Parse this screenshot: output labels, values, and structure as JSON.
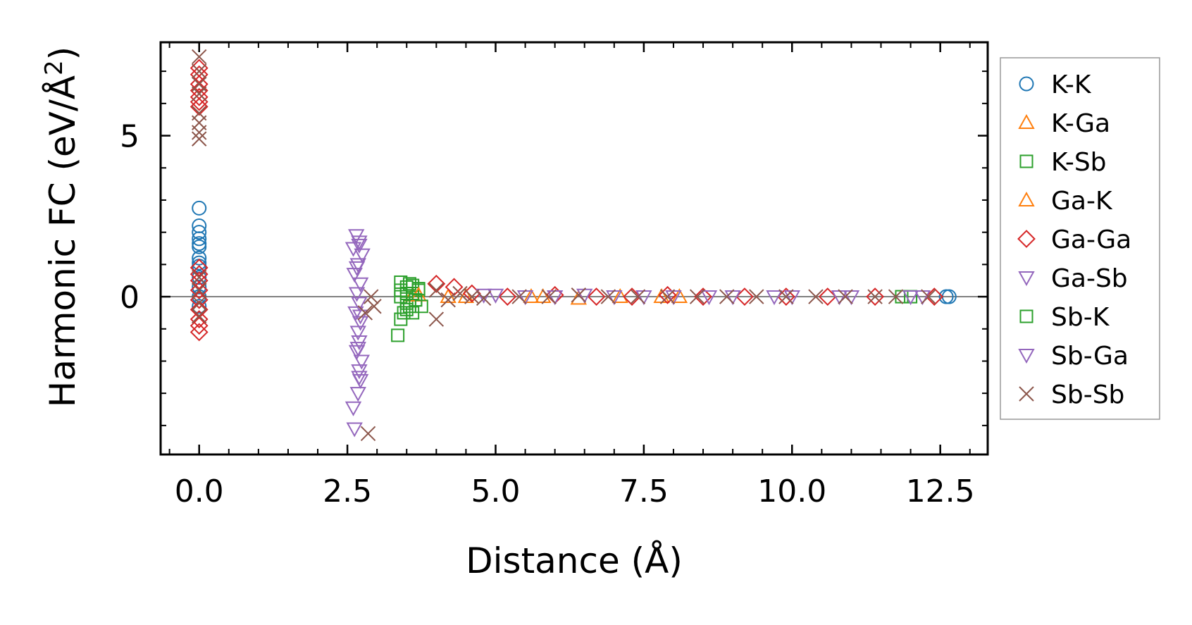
{
  "chart_data": {
    "type": "scatter",
    "title": "",
    "xlabel": "Distance (Å)",
    "ylabel_main": "Harmonic FC (eV/Å",
    "ylabel_sup": "2",
    "ylabel_tail": ")",
    "xlim": [
      -0.65,
      13.3
    ],
    "ylim": [
      -4.9,
      7.9
    ],
    "xticks": [
      0.0,
      2.5,
      5.0,
      7.5,
      10.0,
      12.5
    ],
    "xtick_labels": [
      "0.0",
      "2.5",
      "5.0",
      "7.5",
      "10.0",
      "12.5"
    ],
    "xminor_step": 0.5,
    "yticks": [
      0,
      5
    ],
    "ytick_labels": [
      "0",
      "5"
    ],
    "yminor_step": 1,
    "zero_line": true,
    "grid": false,
    "legend_position": "right outside",
    "series": [
      {
        "name": "K-K",
        "marker": "circle",
        "color": "#1f77b4",
        "points": [
          [
            0.0,
            2.75
          ],
          [
            0.0,
            2.2
          ],
          [
            0.0,
            2.0
          ],
          [
            0.0,
            1.8
          ],
          [
            0.0,
            1.65
          ],
          [
            0.0,
            1.55
          ],
          [
            0.0,
            1.2
          ],
          [
            0.0,
            1.05
          ],
          [
            0.0,
            0.95
          ],
          [
            0.0,
            0.6
          ],
          [
            0.0,
            0.3
          ],
          [
            0.0,
            0.0
          ],
          [
            0.0,
            -0.3
          ],
          [
            12.65,
            0.0
          ],
          [
            12.6,
            0.0
          ]
        ]
      },
      {
        "name": "K-Ga",
        "marker": "triangle-up",
        "color": "#ff7f0e",
        "points": [
          [
            3.6,
            0.05
          ],
          [
            4.2,
            0.0
          ],
          [
            5.6,
            0.0
          ],
          [
            6.4,
            -0.05
          ],
          [
            7.1,
            0.0
          ],
          [
            8.1,
            0.0
          ]
        ]
      },
      {
        "name": "K-Sb",
        "marker": "square",
        "color": "#2ca02c",
        "points": [
          [
            3.35,
            -1.2
          ],
          [
            3.4,
            -0.7
          ],
          [
            3.45,
            -0.5
          ],
          [
            3.4,
            0.45
          ],
          [
            3.5,
            0.3
          ],
          [
            3.55,
            -0.3
          ],
          [
            3.6,
            0.1
          ],
          [
            3.65,
            -0.1
          ],
          [
            3.7,
            0.2
          ],
          [
            3.4,
            0.0
          ],
          [
            3.5,
            -0.2
          ],
          [
            3.6,
            0.35
          ],
          [
            11.85,
            0.0
          ],
          [
            12.0,
            0.0
          ]
        ]
      },
      {
        "name": "Ga-K",
        "marker": "triangle-up",
        "color": "#ff7f0e",
        "points": [
          [
            3.7,
            0.05
          ],
          [
            4.5,
            0.0
          ],
          [
            5.8,
            0.0
          ],
          [
            7.8,
            0.0
          ]
        ]
      },
      {
        "name": "Ga-Ga",
        "marker": "diamond",
        "color": "#d62728",
        "points": [
          [
            0.0,
            7.1
          ],
          [
            0.0,
            6.9
          ],
          [
            0.0,
            6.6
          ],
          [
            0.0,
            6.4
          ],
          [
            0.0,
            6.2
          ],
          [
            0.0,
            6.05
          ],
          [
            0.0,
            5.9
          ],
          [
            0.0,
            0.9
          ],
          [
            0.0,
            0.7
          ],
          [
            0.0,
            0.5
          ],
          [
            0.0,
            0.2
          ],
          [
            0.0,
            -0.1
          ],
          [
            0.0,
            -0.4
          ],
          [
            0.0,
            -0.7
          ],
          [
            0.0,
            -0.9
          ],
          [
            0.0,
            -1.1
          ],
          [
            4.0,
            0.4
          ],
          [
            4.3,
            0.3
          ],
          [
            4.6,
            0.1
          ],
          [
            5.2,
            0.0
          ],
          [
            6.0,
            0.05
          ],
          [
            6.7,
            0.0
          ],
          [
            7.3,
            0.0
          ],
          [
            7.9,
            0.05
          ],
          [
            8.5,
            0.0
          ],
          [
            9.2,
            0.0
          ],
          [
            9.9,
            0.0
          ],
          [
            10.6,
            0.0
          ],
          [
            11.4,
            0.0
          ],
          [
            12.4,
            0.0
          ]
        ]
      },
      {
        "name": "Ga-Sb",
        "marker": "triangle-down",
        "color": "#9467bd",
        "points": [
          [
            2.65,
            1.9
          ],
          [
            2.7,
            1.7
          ],
          [
            2.6,
            1.5
          ],
          [
            2.75,
            1.3
          ],
          [
            2.68,
            1.0
          ],
          [
            2.62,
            0.7
          ],
          [
            2.72,
            0.4
          ],
          [
            2.66,
            0.1
          ],
          [
            2.7,
            -0.2
          ],
          [
            2.64,
            -0.5
          ],
          [
            2.72,
            -0.8
          ],
          [
            2.68,
            -1.1
          ],
          [
            2.7,
            -1.4
          ],
          [
            2.66,
            -1.7
          ],
          [
            2.74,
            -2.0
          ],
          [
            2.7,
            -2.3
          ],
          [
            2.72,
            -2.6
          ],
          [
            2.68,
            -3.0
          ],
          [
            2.6,
            -3.45
          ],
          [
            2.62,
            -4.1
          ],
          [
            5.0,
            0.05
          ],
          [
            6.0,
            0.0
          ],
          [
            7.0,
            0.0
          ],
          [
            8.0,
            0.0
          ],
          [
            9.0,
            0.0
          ],
          [
            10.0,
            0.0
          ],
          [
            11.0,
            0.0
          ],
          [
            12.2,
            0.0
          ]
        ]
      },
      {
        "name": "Sb-K",
        "marker": "square",
        "color": "#2ca02c",
        "points": [
          [
            3.4,
            0.2
          ],
          [
            3.5,
            -0.4
          ],
          [
            3.55,
            0.4
          ],
          [
            3.65,
            -0.1
          ],
          [
            3.7,
            0.25
          ],
          [
            3.75,
            -0.3
          ],
          [
            3.5,
            0.1
          ],
          [
            3.6,
            -0.5
          ]
        ]
      },
      {
        "name": "Sb-Ga",
        "marker": "triangle-down",
        "color": "#9467bd",
        "points": [
          [
            2.7,
            1.6
          ],
          [
            2.66,
            0.9
          ],
          [
            2.72,
            -0.6
          ],
          [
            2.68,
            -1.6
          ],
          [
            2.7,
            -2.5
          ],
          [
            4.8,
            0.05
          ],
          [
            5.5,
            0.0
          ],
          [
            6.5,
            0.05
          ],
          [
            7.5,
            0.0
          ],
          [
            8.6,
            0.0
          ],
          [
            9.7,
            0.0
          ],
          [
            10.8,
            0.0
          ],
          [
            12.0,
            0.0
          ]
        ]
      },
      {
        "name": "Sb-Sb",
        "marker": "x",
        "color": "#8c564b",
        "points": [
          [
            0.0,
            7.45
          ],
          [
            0.0,
            7.0
          ],
          [
            0.0,
            6.6
          ],
          [
            0.0,
            6.3
          ],
          [
            0.0,
            5.7
          ],
          [
            0.0,
            5.4
          ],
          [
            0.0,
            5.1
          ],
          [
            0.0,
            4.9
          ],
          [
            0.0,
            0.6
          ],
          [
            0.0,
            0.2
          ],
          [
            0.0,
            -0.2
          ],
          [
            0.0,
            -0.6
          ],
          [
            2.85,
            -4.25
          ],
          [
            2.8,
            -0.5
          ],
          [
            2.9,
            0.0
          ],
          [
            2.95,
            -0.3
          ],
          [
            4.0,
            -0.7
          ],
          [
            4.0,
            0.2
          ],
          [
            4.2,
            -0.1
          ],
          [
            4.4,
            0.1
          ],
          [
            4.6,
            0.0
          ],
          [
            4.8,
            -0.05
          ],
          [
            5.4,
            0.0
          ],
          [
            5.9,
            0.0
          ],
          [
            6.4,
            0.05
          ],
          [
            6.9,
            0.0
          ],
          [
            7.4,
            0.0
          ],
          [
            7.9,
            0.0
          ],
          [
            8.4,
            0.0
          ],
          [
            8.9,
            0.0
          ],
          [
            9.4,
            0.0
          ],
          [
            9.9,
            0.0
          ],
          [
            10.4,
            0.0
          ],
          [
            10.9,
            0.0
          ],
          [
            11.4,
            0.0
          ],
          [
            11.75,
            0.0
          ],
          [
            12.3,
            0.0
          ]
        ]
      }
    ]
  }
}
